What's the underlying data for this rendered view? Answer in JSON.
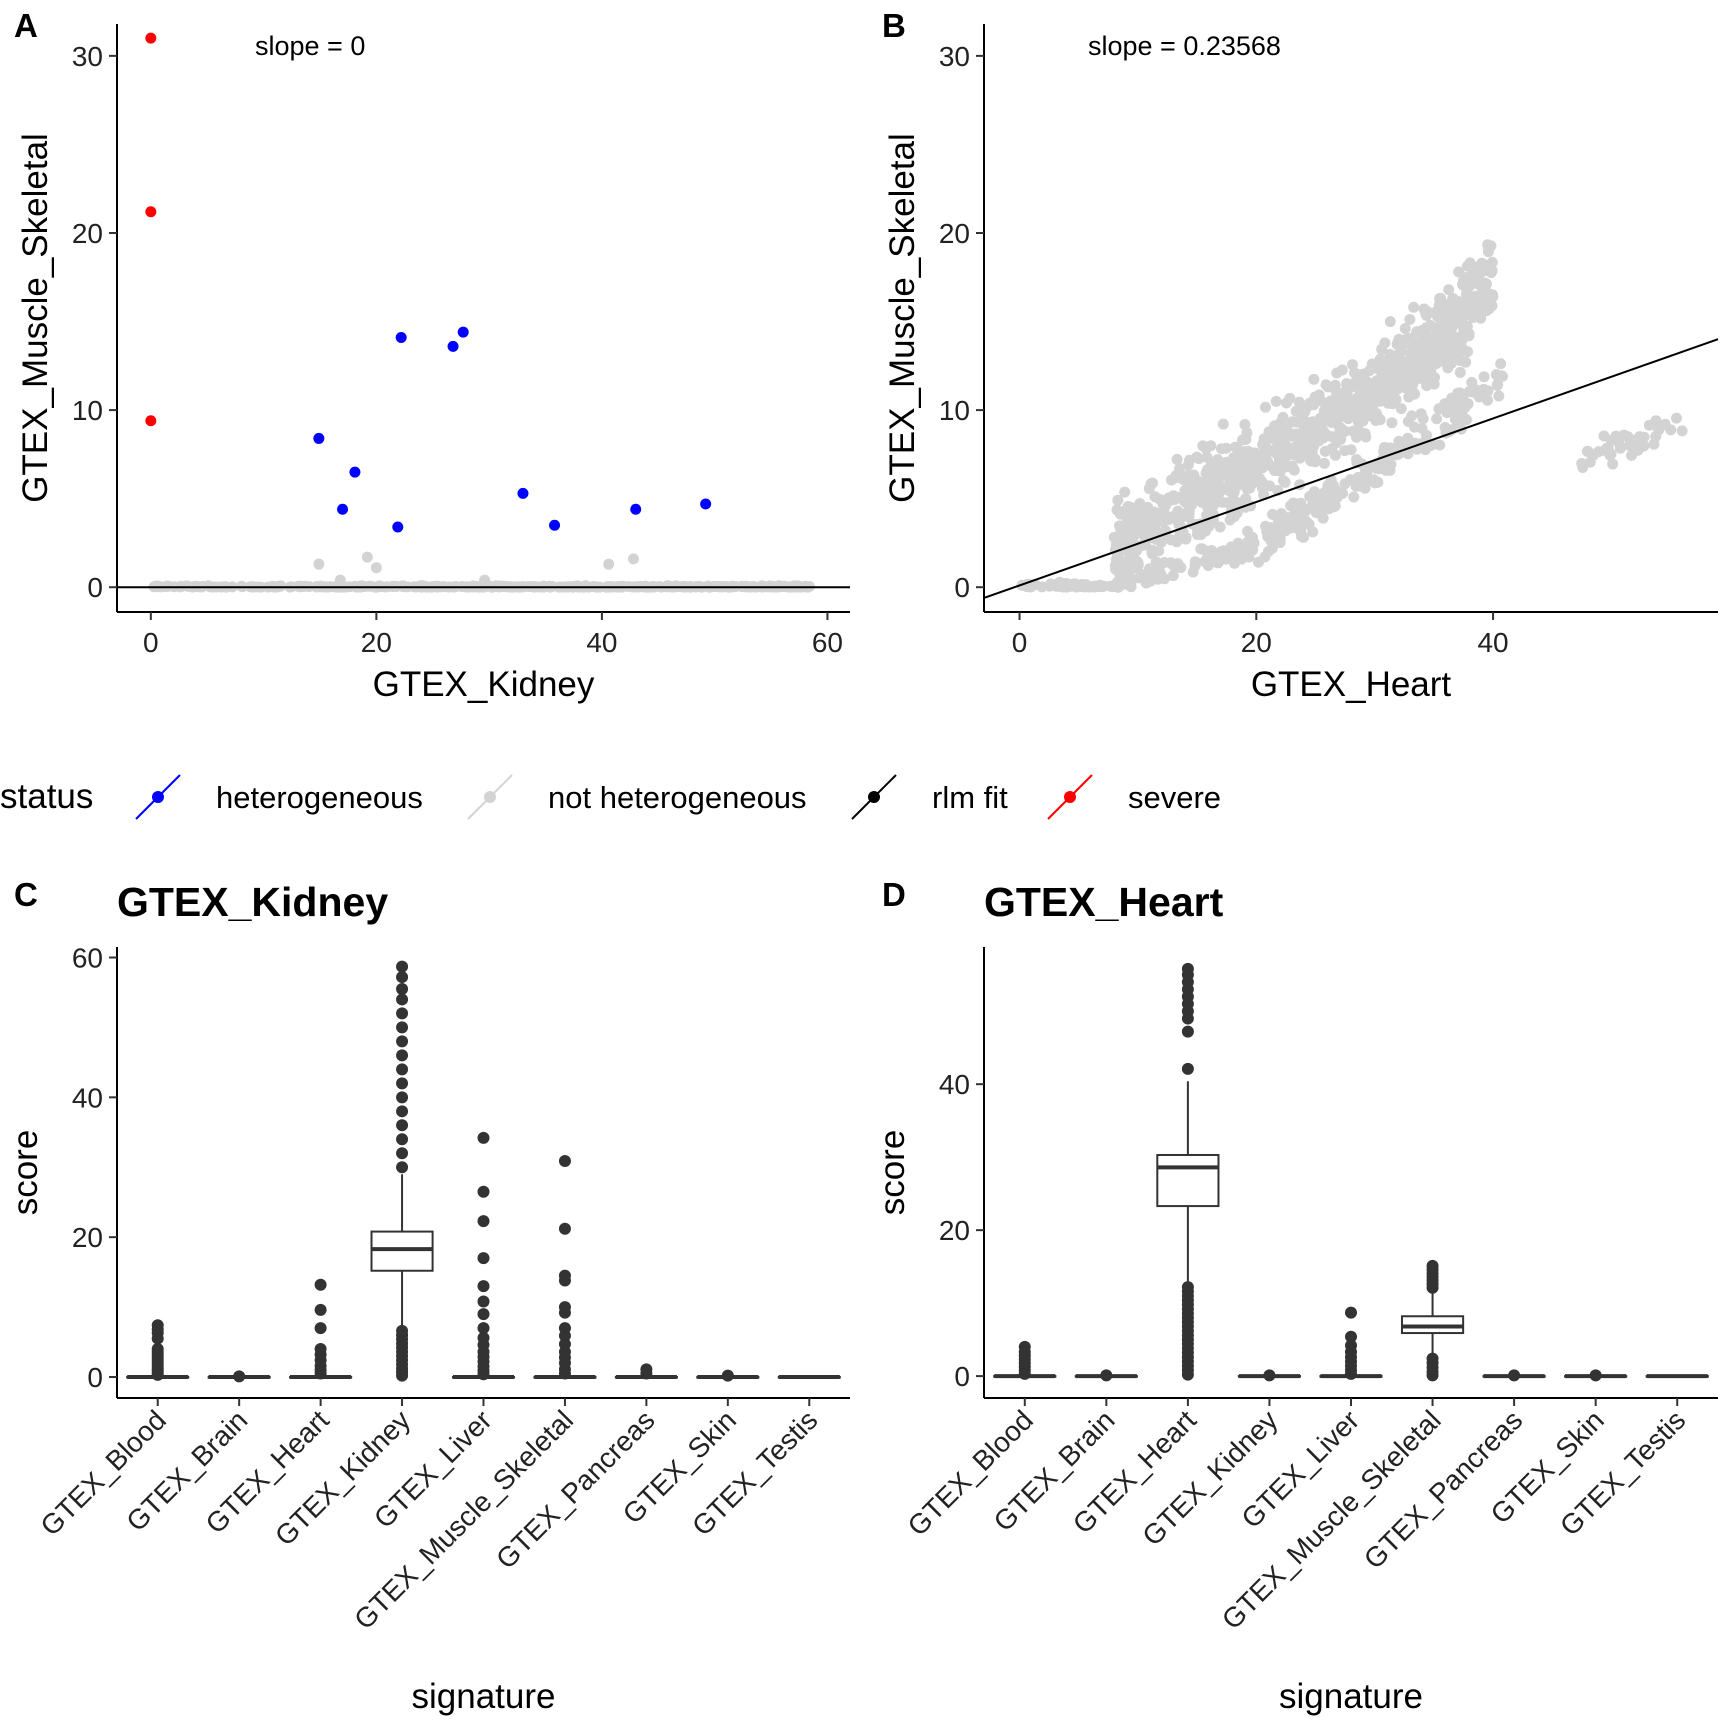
{
  "chart_data": [
    {
      "panel": "A",
      "type": "scatter",
      "xlabel": "GTEX_Kidney",
      "ylabel": "GTEX_Muscle_Skeletal",
      "xlim": [
        -3,
        62
      ],
      "ylim": [
        -1.4,
        31.8
      ],
      "xticks": [
        "0",
        "20",
        "40",
        "60"
      ],
      "yticks": [
        "0",
        "10",
        "20",
        "30"
      ],
      "annotation": "slope =  0",
      "fit_line": {
        "slope": 0,
        "intercept": 0
      },
      "series": [
        {
          "name": "severe",
          "color": "#ff0000",
          "points": [
            [
              0,
              31.0
            ],
            [
              0,
              21.2
            ],
            [
              0,
              9.4
            ]
          ]
        },
        {
          "name": "heterogeneous",
          "color": "#0000ff",
          "points": [
            [
              22.2,
              14.1
            ],
            [
              27.7,
              14.4
            ],
            [
              26.8,
              13.6
            ],
            [
              14.9,
              8.4
            ],
            [
              18.1,
              6.5
            ],
            [
              17.0,
              4.4
            ],
            [
              21.9,
              3.4
            ],
            [
              33.0,
              5.3
            ],
            [
              35.8,
              3.5
            ],
            [
              43.0,
              4.4
            ],
            [
              49.2,
              4.7
            ]
          ]
        },
        {
          "name": "not heterogeneous",
          "color": "#d3d3d3",
          "points": [
            [
              14.9,
              1.3
            ],
            [
              16.8,
              0.4
            ],
            [
              19.2,
              1.7
            ],
            [
              20.0,
              1.1
            ],
            [
              29.6,
              0.4
            ],
            [
              40.6,
              1.3
            ],
            [
              42.8,
              1.6
            ]
          ]
        }
      ]
    },
    {
      "panel": "B",
      "type": "scatter",
      "xlabel": "GTEX_Heart",
      "ylabel": "GTEX_Muscle_Skeletal",
      "xlim": [
        -3,
        59
      ],
      "ylim": [
        -1.4,
        31.8
      ],
      "xticks": [
        "0",
        "20",
        "40"
      ],
      "yticks": [
        "0",
        "10",
        "20",
        "30"
      ],
      "annotation": "slope =  0.23568",
      "fit_line": {
        "slope": 0.23568,
        "intercept": 0.1
      },
      "series": [
        {
          "name": "not heterogeneous",
          "color": "#d3d3d3",
          "points": []
        }
      ]
    },
    {
      "panel": "C",
      "type": "box",
      "title": "GTEX_Kidney",
      "xlabel": "signature",
      "ylabel": "score",
      "ylim": [
        -3,
        61.5
      ],
      "yticks": [
        "0",
        "20",
        "40",
        "60"
      ],
      "categories": [
        "GTEX_Blood",
        "GTEX_Brain",
        "GTEX_Heart",
        "GTEX_Kidney",
        "GTEX_Liver",
        "GTEX_Muscle_Skeletal",
        "GTEX_Pancreas",
        "GTEX_Skin",
        "GTEX_Testis"
      ],
      "boxes": [
        {
          "q1": 0,
          "median": 0,
          "q3": 0,
          "lo": 0,
          "hi": 0,
          "outliers": [
            0.3,
            0.6,
            0.9,
            1.2,
            1.6,
            2.0,
            2.4,
            2.8,
            3.2,
            3.6,
            4.0,
            5.5,
            6.3,
            6.8,
            7.4
          ]
        },
        {
          "q1": 0,
          "median": 0,
          "q3": 0,
          "lo": 0,
          "hi": 0,
          "outliers": [
            0.1
          ]
        },
        {
          "q1": 0,
          "median": 0,
          "q3": 0,
          "lo": 0,
          "hi": 0,
          "outliers": [
            0.5,
            1.0,
            1.6,
            2.4,
            3.2,
            4.0,
            7.0,
            9.6,
            13.2
          ]
        },
        {
          "q1": 15.2,
          "median": 18.3,
          "q3": 20.8,
          "lo": 7.0,
          "hi": 29.0,
          "outliers": [
            0.2,
            0.7,
            1.2,
            1.8,
            2.4,
            3.0,
            3.6,
            4.2,
            4.8,
            5.4,
            6.0,
            6.6,
            30.0,
            32.0,
            34.0,
            36.0,
            38.0,
            40.0,
            42.0,
            44.0,
            46.0,
            48.0,
            50.0,
            52.0,
            54.0,
            55.5,
            57.2,
            58.7
          ]
        },
        {
          "q1": 0,
          "median": 0,
          "q3": 0,
          "lo": 0,
          "hi": 0,
          "outliers": [
            0.4,
            0.9,
            1.5,
            2.2,
            2.9,
            3.6,
            4.6,
            5.6,
            7.0,
            9.0,
            10.8,
            13.0,
            17.0,
            22.3,
            26.5,
            34.2
          ]
        },
        {
          "q1": 0,
          "median": 0,
          "q3": 0,
          "lo": 0,
          "hi": 0,
          "outliers": [
            0.5,
            1.1,
            2.0,
            2.8,
            3.6,
            4.7,
            5.9,
            7.0,
            9.2,
            10.0,
            13.8,
            14.5,
            21.2,
            30.9
          ]
        },
        {
          "q1": 0,
          "median": 0,
          "q3": 0,
          "lo": 0,
          "hi": 0,
          "outliers": [
            0.5,
            1.1
          ]
        },
        {
          "q1": 0,
          "median": 0,
          "q3": 0,
          "lo": 0,
          "hi": 0,
          "outliers": [
            0.2
          ]
        },
        {
          "q1": 0,
          "median": 0,
          "q3": 0,
          "lo": 0,
          "hi": 0,
          "outliers": []
        }
      ]
    },
    {
      "panel": "D",
      "type": "box",
      "title": "GTEX_Heart",
      "xlabel": "signature",
      "ylabel": "score",
      "ylim": [
        -3,
        58.8
      ],
      "yticks": [
        "0",
        "20",
        "40"
      ],
      "categories": [
        "GTEX_Blood",
        "GTEX_Brain",
        "GTEX_Heart",
        "GTEX_Kidney",
        "GTEX_Liver",
        "GTEX_Muscle_Skeletal",
        "GTEX_Pancreas",
        "GTEX_Skin",
        "GTEX_Testis"
      ],
      "boxes": [
        {
          "q1": 0,
          "median": 0,
          "q3": 0,
          "lo": 0,
          "hi": 0,
          "outliers": [
            0.3,
            0.8,
            1.3,
            1.8,
            2.3,
            2.8,
            3.3,
            4.0
          ]
        },
        {
          "q1": 0,
          "median": 0,
          "q3": 0,
          "lo": 0,
          "hi": 0,
          "outliers": [
            0.1
          ]
        },
        {
          "q1": 23.3,
          "median": 28.6,
          "q3": 30.3,
          "lo": 12.7,
          "hi": 40.4,
          "outliers": [
            0.2,
            0.8,
            1.4,
            2.0,
            2.6,
            3.2,
            3.8,
            4.4,
            5.0,
            5.6,
            6.2,
            6.8,
            7.4,
            8.0,
            8.6,
            9.2,
            9.8,
            10.4,
            11.0,
            11.6,
            12.2,
            42.1,
            47.2,
            49.0,
            50.0,
            51.0,
            52.0,
            53.0,
            54.0,
            55.0,
            55.8
          ]
        },
        {
          "q1": 0,
          "median": 0,
          "q3": 0,
          "lo": 0,
          "hi": 0,
          "outliers": [
            0.1
          ]
        },
        {
          "q1": 0,
          "median": 0,
          "q3": 0,
          "lo": 0,
          "hi": 0,
          "outliers": [
            0.3,
            0.8,
            1.4,
            2.0,
            2.6,
            3.3,
            4.2,
            5.4,
            8.7
          ]
        },
        {
          "q1": 5.9,
          "median": 6.8,
          "q3": 8.2,
          "lo": 2.9,
          "hi": 11.6,
          "outliers": [
            0.1,
            0.6,
            1.2,
            1.8,
            2.4,
            12.1,
            12.6,
            13.1,
            13.6,
            14.1,
            14.6,
            15.1
          ]
        },
        {
          "q1": 0,
          "median": 0,
          "q3": 0,
          "lo": 0,
          "hi": 0,
          "outliers": [
            0.1
          ]
        },
        {
          "q1": 0,
          "median": 0,
          "q3": 0,
          "lo": 0,
          "hi": 0,
          "outliers": [
            0.1
          ]
        },
        {
          "q1": 0,
          "median": 0,
          "q3": 0,
          "lo": 0,
          "hi": 0,
          "outliers": []
        }
      ]
    }
  ],
  "legend": {
    "title": "status",
    "placement": "middle, between top and bottom rows",
    "items": [
      {
        "label": "heterogeneous",
        "color": "#0000ff"
      },
      {
        "label": "not heterogeneous",
        "color": "#d3d3d3"
      },
      {
        "label": "rlm fit",
        "color": "#000000"
      },
      {
        "label": "severe",
        "color": "#ff0000"
      }
    ]
  }
}
